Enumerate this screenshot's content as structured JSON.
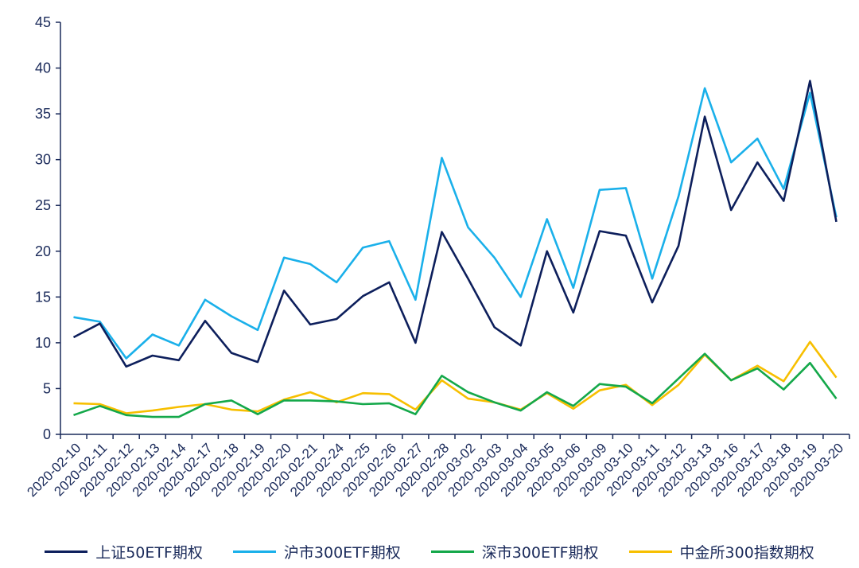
{
  "chart_data": {
    "type": "line",
    "title": "",
    "xlabel": "",
    "ylabel": "",
    "ylim": [
      0,
      45
    ],
    "yticks": [
      "0",
      "5",
      "10",
      "15",
      "20",
      "25",
      "30",
      "35",
      "40",
      "45"
    ],
    "grid": false,
    "legend_position": "bottom",
    "categories": [
      "2020-02-10",
      "2020-02-11",
      "2020-02-12",
      "2020-02-13",
      "2020-02-14",
      "2020-02-17",
      "2020-02-18",
      "2020-02-19",
      "2020-02-20",
      "2020-02-21",
      "2020-02-24",
      "2020-02-25",
      "2020-02-26",
      "2020-02-27",
      "2020-02-28",
      "2020-03-02",
      "2020-03-03",
      "2020-03-04",
      "2020-03-05",
      "2020-03-06",
      "2020-03-09",
      "2020-03-10",
      "2020-03-11",
      "2020-03-12",
      "2020-03-13",
      "2020-03-16",
      "2020-03-17",
      "2020-03-18",
      "2020-03-19",
      "2020-03-20"
    ],
    "series": [
      {
        "name": "上证50ETF期权",
        "color": "#0d1f5c",
        "values": [
          10.6,
          12.1,
          7.4,
          8.6,
          8.1,
          12.4,
          8.9,
          7.9,
          15.7,
          12.0,
          12.6,
          15.1,
          16.6,
          10.0,
          22.1,
          17.0,
          11.7,
          9.7,
          20.0,
          13.3,
          22.2,
          21.7,
          14.4,
          20.6,
          34.7,
          24.5,
          29.7,
          25.5,
          38.6,
          23.2
        ]
      },
      {
        "name": "沪市300ETF期权",
        "color": "#1ab0ea",
        "values": [
          12.8,
          12.3,
          8.3,
          10.9,
          9.7,
          14.7,
          12.9,
          11.4,
          19.3,
          18.6,
          16.6,
          20.4,
          21.1,
          14.7,
          30.2,
          22.6,
          19.3,
          15.0,
          23.5,
          16.0,
          26.7,
          26.9,
          17.0,
          26.0,
          37.8,
          29.7,
          32.3,
          26.8,
          37.3,
          23.7
        ]
      },
      {
        "name": "深市300ETF期权",
        "color": "#14a84a",
        "values": [
          2.1,
          3.1,
          2.1,
          1.9,
          1.9,
          3.3,
          3.7,
          2.2,
          3.7,
          3.7,
          3.6,
          3.3,
          3.4,
          2.2,
          6.4,
          4.6,
          3.5,
          2.6,
          4.6,
          3.1,
          5.5,
          5.2,
          3.4,
          6.1,
          8.8,
          5.9,
          7.2,
          4.9,
          7.8,
          3.9
        ]
      },
      {
        "name": "中金所300指数期权",
        "color": "#f7bf00",
        "values": [
          3.4,
          3.3,
          2.3,
          2.6,
          3.0,
          3.3,
          2.7,
          2.5,
          3.8,
          4.6,
          3.5,
          4.5,
          4.4,
          2.7,
          5.9,
          3.9,
          3.5,
          2.7,
          4.5,
          2.8,
          4.8,
          5.4,
          3.2,
          5.4,
          8.7,
          5.9,
          7.5,
          5.8,
          10.1,
          6.2
        ]
      }
    ]
  }
}
